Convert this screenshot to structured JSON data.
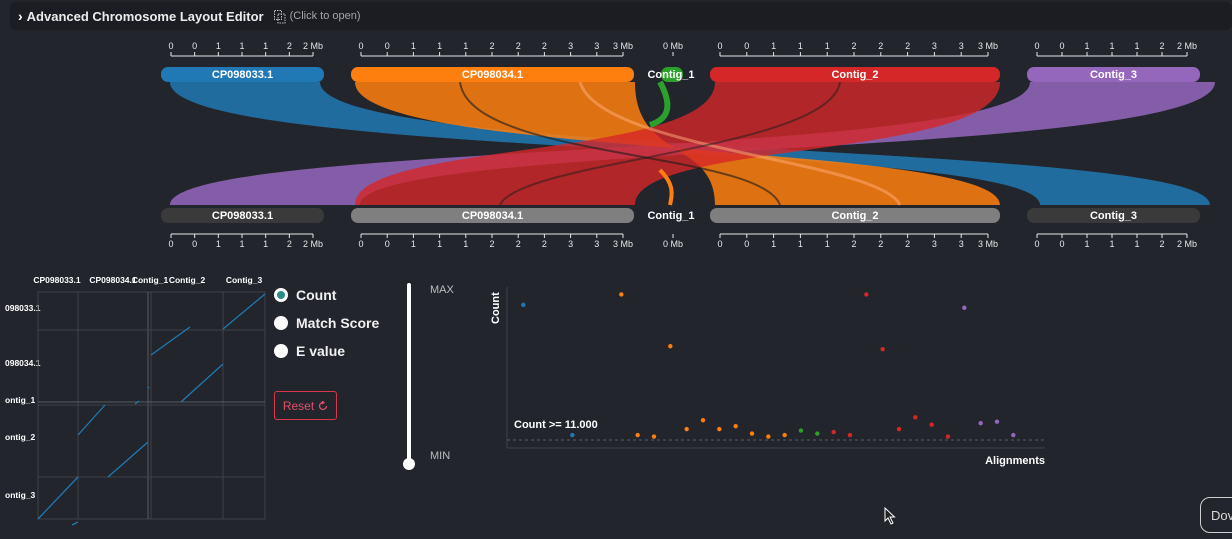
{
  "header": {
    "chevron": "›",
    "title": "Advanced Chromosome Layout Editor",
    "hint": "(Click to open)"
  },
  "chromosomes": {
    "top": [
      {
        "label": "CP098033.1",
        "color": "#2079b4",
        "ticks": [
          "0",
          "0",
          "1",
          "1",
          "1",
          "2",
          "2 Mb"
        ]
      },
      {
        "label": "CP098034.1",
        "color": "#ff7f0e",
        "ticks": [
          "0",
          "0",
          "1",
          "1",
          "1",
          "2",
          "2",
          "2",
          "3",
          "3",
          "3 Mb"
        ]
      },
      {
        "label": "Contig_1",
        "color": "#2ca02c",
        "ticks": [
          "0 Mb"
        ]
      },
      {
        "label": "Contig_2",
        "color": "#d62728",
        "ticks": [
          "0",
          "0",
          "1",
          "1",
          "1",
          "2",
          "2",
          "2",
          "3",
          "3",
          "3 Mb"
        ]
      },
      {
        "label": "Contig_3",
        "color": "#9467bd",
        "ticks": [
          "0",
          "0",
          "1",
          "1",
          "1",
          "2",
          "2 Mb"
        ]
      }
    ],
    "bottom": [
      {
        "label": "CP098033.1",
        "color": "#3a3a3a",
        "ticks": [
          "0",
          "0",
          "1",
          "1",
          "1",
          "2",
          "2 Mb"
        ]
      },
      {
        "label": "CP098034.1",
        "color": "#7f7f7f",
        "ticks": [
          "0",
          "0",
          "1",
          "1",
          "1",
          "2",
          "2",
          "2",
          "3",
          "3",
          "3 Mb"
        ]
      },
      {
        "label": "Contig_1",
        "color": "#222222",
        "ticks": [
          "0 Mb"
        ]
      },
      {
        "label": "Contig_2",
        "color": "#7f7f7f",
        "ticks": [
          "0",
          "0",
          "1",
          "1",
          "1",
          "2",
          "2",
          "2",
          "3",
          "3",
          "3 Mb"
        ]
      },
      {
        "label": "Contig_3",
        "color": "#3a3a3a",
        "ticks": [
          "0",
          "0",
          "1",
          "1",
          "1",
          "2",
          "2 Mb"
        ]
      }
    ]
  },
  "dotplot": {
    "col_labels": [
      "CP098033.1",
      "CP098034.1",
      "Contig_1",
      "Contig_2",
      "Contig_3"
    ],
    "row_labels": [
      "098033.1",
      "098034.1",
      "ontig_1",
      "ontig_2",
      "ontig_3"
    ]
  },
  "metric_options": [
    {
      "label": "Count",
      "selected": true
    },
    {
      "label": "Match Score",
      "selected": false
    },
    {
      "label": "E value",
      "selected": false
    }
  ],
  "reset_label": "Reset",
  "slider": {
    "max_label": "MAX",
    "min_label": "MIN",
    "value": 0
  },
  "scatter": {
    "ylabel": "Count",
    "xlabel": "Alignments",
    "threshold_label": "Count >= 11.000"
  },
  "download_label": "Dov",
  "chart_data": {
    "type": "scatter",
    "title": "",
    "xlabel": "Alignments",
    "ylabel": "Count",
    "threshold": 11,
    "series": [
      {
        "color": "#2079b4",
        "x": [
          1,
          4
        ],
        "y": [
          90,
          2
        ]
      },
      {
        "color": "#ff7f0e",
        "x": [
          7,
          8,
          9,
          10,
          11,
          12,
          13,
          14,
          15,
          16,
          17
        ],
        "y": [
          97,
          2,
          1,
          62,
          6,
          12,
          6,
          8,
          3,
          1,
          2
        ]
      },
      {
        "color": "#2ca02c",
        "x": [
          18,
          19
        ],
        "y": [
          5,
          3
        ]
      },
      {
        "color": "#d62728",
        "x": [
          20,
          21,
          22,
          23,
          24,
          25,
          26,
          27
        ],
        "y": [
          4,
          2,
          97,
          60,
          6,
          14,
          9,
          1
        ]
      },
      {
        "color": "#9467bd",
        "x": [
          28,
          29,
          30,
          31
        ],
        "y": [
          88,
          10,
          11,
          2
        ]
      }
    ]
  }
}
